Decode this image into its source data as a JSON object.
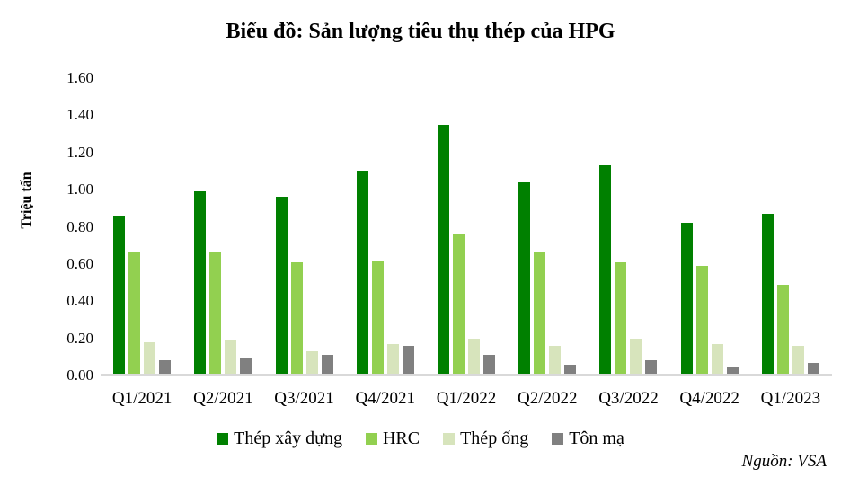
{
  "title": "Biểu đồ: Sản lượng tiêu thụ thép của HPG",
  "y_axis": {
    "label": "Triệu tấn",
    "ticks": [
      "1.60",
      "1.40",
      "1.20",
      "1.00",
      "0.80",
      "0.60",
      "0.40",
      "0.20",
      "0.00"
    ]
  },
  "source_note": "Nguồn: VSA",
  "colors": {
    "construction_steel": "#008000",
    "hrc": "#92d050",
    "steel_pipe": "#d7e4bc",
    "coated_sheet": "#808080",
    "axis_line": "#d9d9d9"
  },
  "chart_data": {
    "type": "bar",
    "title": "Biểu đồ: Sản lượng tiêu thụ thép của HPG",
    "xlabel": "",
    "ylabel": "Triệu tấn",
    "ylim": [
      0,
      1.6
    ],
    "ytick_step": 0.2,
    "grid": false,
    "legend_position": "bottom",
    "source": "Nguồn: VSA",
    "categories": [
      "Q1/2021",
      "Q2/2021",
      "Q3/2021",
      "Q4/2021",
      "Q1/2022",
      "Q2/2022",
      "Q3/2022",
      "Q4/2022",
      "Q1/2023"
    ],
    "series": [
      {
        "name": "Thép xây dựng",
        "color": "#008000",
        "values": [
          0.86,
          0.99,
          0.96,
          1.1,
          1.35,
          1.04,
          1.13,
          0.82,
          0.87
        ]
      },
      {
        "name": "HRC",
        "color": "#92d050",
        "values": [
          0.66,
          0.66,
          0.61,
          0.62,
          0.76,
          0.66,
          0.61,
          0.59,
          0.49
        ]
      },
      {
        "name": "Thép ống",
        "color": "#d7e4bc",
        "values": [
          0.18,
          0.19,
          0.13,
          0.17,
          0.2,
          0.16,
          0.2,
          0.17,
          0.16
        ]
      },
      {
        "name": "Tôn mạ",
        "color": "#808080",
        "values": [
          0.08,
          0.09,
          0.11,
          0.16,
          0.11,
          0.06,
          0.08,
          0.05,
          0.07
        ]
      }
    ]
  }
}
